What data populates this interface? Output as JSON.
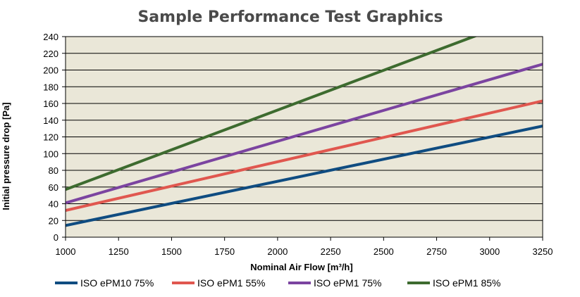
{
  "chart_data": {
    "type": "line",
    "title": "Sample Performance Test Graphics",
    "xlabel": "Nominal Air Flow [m³/h]",
    "ylabel": "Initial pressure drop [Pa]",
    "xlim": [
      1000,
      3250
    ],
    "ylim": [
      0,
      240
    ],
    "x_ticks": [
      "1000",
      "1250",
      "1500",
      "1750",
      "2000",
      "2250",
      "2500",
      "2750",
      "3000",
      "3250"
    ],
    "y_ticks": [
      "0",
      "20",
      "40",
      "60",
      "80",
      "100",
      "120",
      "140",
      "160",
      "180",
      "200",
      "220",
      "240"
    ],
    "grid": "horizontal",
    "background": "#eae7d8",
    "legend_position": "bottom",
    "series": [
      {
        "name": "ISO ePM10 75%",
        "color": "#0f4c81",
        "x": [
          1000,
          3250
        ],
        "y": [
          14,
          133
        ]
      },
      {
        "name": "ISO ePM1 55%",
        "color": "#e0574f",
        "x": [
          1000,
          3250
        ],
        "y": [
          32,
          163
        ]
      },
      {
        "name": "ISO ePM1 75%",
        "color": "#7b44a0",
        "x": [
          1000,
          3250
        ],
        "y": [
          41,
          207
        ]
      },
      {
        "name": "ISO ePM1 85%",
        "color": "#3d6b2f",
        "x": [
          1000,
          3250
        ],
        "y": [
          57,
          271
        ]
      }
    ]
  }
}
